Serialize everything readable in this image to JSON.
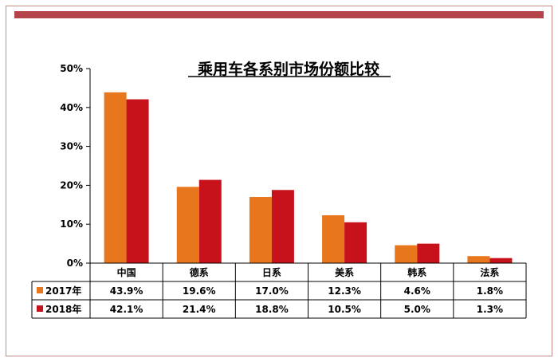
{
  "chart_data": {
    "type": "bar",
    "title": "乘用车各系别市场份额比较",
    "categories": [
      "中国",
      "德系",
      "日系",
      "美系",
      "韩系",
      "法系"
    ],
    "ylim": [
      0,
      50
    ],
    "yticks": [
      "0%",
      "10%",
      "20%",
      "30%",
      "40%",
      "50%"
    ],
    "grid": false,
    "series": [
      {
        "name": "2017年",
        "color": "#e8761c",
        "values": [
          43.9,
          19.6,
          17.0,
          12.3,
          4.6,
          1.8
        ],
        "labels": [
          "43.9%",
          "19.6%",
          "17.0%",
          "12.3%",
          "4.6%",
          "1.8%"
        ]
      },
      {
        "name": "2018年",
        "color": "#c8121b",
        "values": [
          42.1,
          21.4,
          18.8,
          10.5,
          5.0,
          1.3
        ],
        "labels": [
          "42.1%",
          "21.4%",
          "18.8%",
          "10.5%",
          "5.0%",
          "1.3%"
        ]
      }
    ]
  }
}
